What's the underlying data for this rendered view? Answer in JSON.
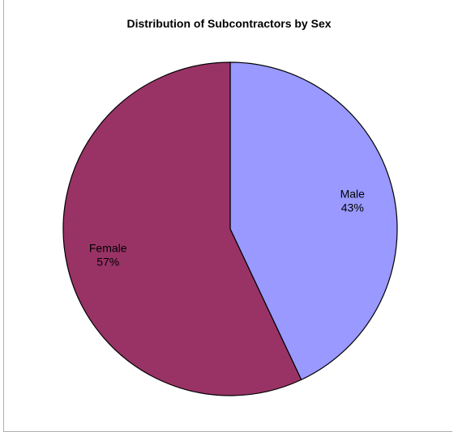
{
  "chart_data": {
    "type": "pie",
    "title": "Distribution of Subcontractors by Sex",
    "start_angle_deg": 0,
    "direction": "clockwise",
    "slices": [
      {
        "label": "Male",
        "value": 43,
        "pct_label": "43%",
        "color": "#9999ff"
      },
      {
        "label": "Female",
        "value": 57,
        "pct_label": "57%",
        "color": "#993366"
      }
    ],
    "legend": "none"
  }
}
